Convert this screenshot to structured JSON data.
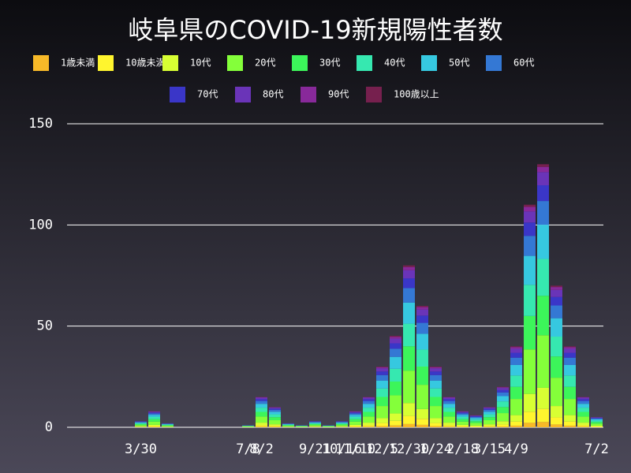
{
  "chart_data": {
    "type": "stacked_bar",
    "title": "岐阜県のCOVID-19新規陽性者数",
    "categories": [
      null,
      null,
      null,
      null,
      null,
      "3/30",
      null,
      null,
      null,
      null,
      null,
      null,
      null,
      "7/8",
      "8/2",
      null,
      null,
      null,
      "9/21",
      null,
      "10/16",
      "11/10",
      null,
      "12/5",
      null,
      "12/30",
      null,
      "1/24",
      null,
      "2/18",
      null,
      "3/15",
      null,
      "4/9",
      null,
      null,
      null,
      null,
      null,
      "7/2"
    ],
    "ylim": [
      0,
      150
    ],
    "yticks": [
      0,
      50,
      100,
      150
    ],
    "grid": true,
    "series": [
      {
        "name": "1歳未満",
        "color": "#f7b928",
        "values": [
          0,
          0,
          0,
          0,
          0,
          0.1,
          0.2,
          0,
          0,
          0,
          0,
          0,
          0,
          0,
          0.3,
          0.2,
          0,
          0,
          0.1,
          0,
          0.1,
          0.2,
          0.3,
          0.6,
          0.9,
          1.6,
          1.2,
          0.6,
          0.3,
          0.2,
          0.1,
          0.2,
          0.4,
          0.8,
          2.2,
          2.6,
          1.4,
          0.8,
          0.3,
          0.1
        ]
      },
      {
        "name": "10歳未満",
        "color": "#fff52e",
        "values": [
          0,
          0,
          0,
          0,
          0,
          0.2,
          0.4,
          0.1,
          0,
          0,
          0,
          0,
          0,
          0.1,
          0.8,
          0.5,
          0.1,
          0.1,
          0.2,
          0.1,
          0.2,
          0.4,
          0.8,
          1.5,
          2.3,
          4,
          3,
          1.5,
          0.8,
          0.4,
          0.3,
          0.5,
          1,
          2,
          5.5,
          6.5,
          3.5,
          2,
          0.8,
          0.3
        ]
      },
      {
        "name": "10代",
        "color": "#d8ff33",
        "values": [
          0,
          0,
          0,
          0,
          0,
          0.2,
          0.6,
          0.2,
          0,
          0,
          0,
          0,
          0,
          0.1,
          1.2,
          0.8,
          0.2,
          0.1,
          0.2,
          0.1,
          0.2,
          0.6,
          1.2,
          2.4,
          3.6,
          6.4,
          4.8,
          2.4,
          1.2,
          0.6,
          0.5,
          0.8,
          1.6,
          3.2,
          8.8,
          10.4,
          5.6,
          3.2,
          1.2,
          0.4
        ]
      },
      {
        "name": "20代",
        "color": "#84ff3a",
        "values": [
          0,
          0,
          0,
          0,
          0,
          0.6,
          1.6,
          0.4,
          0,
          0,
          0,
          0,
          0,
          0.2,
          3,
          2,
          0.4,
          0.2,
          0.6,
          0.2,
          0.6,
          1.6,
          3,
          6,
          9,
          16,
          12,
          6,
          3,
          1.6,
          1.2,
          2,
          4,
          8,
          22,
          26,
          14,
          8,
          3,
          1
        ]
      },
      {
        "name": "30代",
        "color": "#3cf55a",
        "values": [
          0,
          0,
          0,
          0,
          0,
          0.5,
          1.2,
          0.3,
          0,
          0,
          0,
          0,
          0,
          0.2,
          2.3,
          1.5,
          0.3,
          0.2,
          0.5,
          0.2,
          0.5,
          1.2,
          2.3,
          4.5,
          6.8,
          12,
          9,
          4.5,
          2.3,
          1.2,
          0.9,
          1.5,
          3,
          6,
          16.5,
          19.5,
          10.5,
          6,
          2.3,
          0.8
        ]
      },
      {
        "name": "40代",
        "color": "#36e8b0",
        "values": [
          0,
          0,
          0,
          0,
          0,
          0.4,
          1.1,
          0.3,
          0,
          0,
          0,
          0,
          0,
          0.1,
          2.1,
          1.4,
          0.3,
          0.1,
          0.4,
          0.1,
          0.4,
          1.1,
          2.1,
          4.2,
          6.3,
          11.2,
          8.4,
          4.2,
          2.1,
          1.1,
          0.8,
          1.4,
          2.8,
          5.6,
          15.4,
          18.2,
          9.8,
          5.6,
          2.1,
          0.7
        ]
      },
      {
        "name": "50代",
        "color": "#36c8e0",
        "values": [
          0,
          0,
          0,
          0,
          0,
          0.4,
          1,
          0.3,
          0,
          0,
          0,
          0,
          0,
          0.1,
          1.9,
          1.3,
          0.3,
          0.1,
          0.4,
          0.1,
          0.4,
          1,
          1.9,
          3.9,
          5.9,
          10.4,
          7.8,
          3.9,
          1.9,
          1,
          0.8,
          1.3,
          2.6,
          5.2,
          14.3,
          16.9,
          9.1,
          5.2,
          1.9,
          0.6
        ]
      },
      {
        "name": "60代",
        "color": "#3478d4",
        "values": [
          0,
          0,
          0,
          0,
          0,
          0.3,
          0.7,
          0.2,
          0,
          0,
          0,
          0,
          0,
          0.1,
          1.4,
          0.9,
          0.2,
          0.1,
          0.3,
          0.1,
          0.3,
          0.7,
          1.4,
          2.7,
          4,
          7.2,
          5.4,
          2.7,
          1.4,
          0.7,
          0.5,
          0.9,
          1.8,
          3.6,
          9.9,
          11.7,
          6.3,
          3.6,
          1.4,
          0.5
        ]
      },
      {
        "name": "70代",
        "color": "#3a36c8",
        "values": [
          0,
          0,
          0,
          0,
          0,
          0.2,
          0.5,
          0.1,
          0,
          0,
          0,
          0,
          0,
          0.1,
          0.9,
          0.6,
          0.1,
          0.1,
          0.2,
          0.1,
          0.2,
          0.5,
          0.9,
          1.8,
          2.7,
          4.8,
          3.6,
          1.8,
          0.9,
          0.5,
          0.4,
          0.6,
          1.2,
          2.4,
          6.6,
          7.8,
          4.2,
          2.4,
          0.9,
          0.3
        ]
      },
      {
        "name": "80代",
        "color": "#6a34b8",
        "values": [
          0,
          0,
          0,
          0,
          0,
          0.1,
          0.4,
          0.1,
          0,
          0,
          0,
          0,
          0,
          0,
          0.7,
          0.5,
          0.1,
          0,
          0.1,
          0,
          0.1,
          0.4,
          0.7,
          1.5,
          2.3,
          4,
          3,
          1.5,
          0.7,
          0.4,
          0.3,
          0.5,
          1,
          2,
          5.5,
          6.5,
          3.5,
          2,
          0.7,
          0.2
        ]
      },
      {
        "name": "90代",
        "color": "#88299a",
        "values": [
          0,
          0,
          0,
          0,
          0,
          0,
          0.2,
          0,
          0,
          0,
          0,
          0,
          0,
          0,
          0.3,
          0.2,
          0,
          0,
          0,
          0,
          0,
          0.2,
          0.3,
          0.6,
          0.9,
          1.6,
          1.2,
          0.6,
          0.3,
          0.2,
          0.1,
          0.2,
          0.4,
          0.8,
          2.2,
          2.6,
          1.4,
          0.8,
          0.3,
          0.1
        ]
      },
      {
        "name": "100歳以上",
        "color": "#76204e",
        "values": [
          0,
          0,
          0,
          0,
          0,
          0,
          0.1,
          0,
          0,
          0,
          0,
          0,
          0,
          0,
          0.1,
          0.1,
          0,
          0,
          0,
          0,
          0,
          0.1,
          0.1,
          0.3,
          0.5,
          0.8,
          0.6,
          0.3,
          0.1,
          0.1,
          0.1,
          0.1,
          0.2,
          0.4,
          1.1,
          1.3,
          0.7,
          0.4,
          0.1,
          0
        ]
      }
    ]
  }
}
